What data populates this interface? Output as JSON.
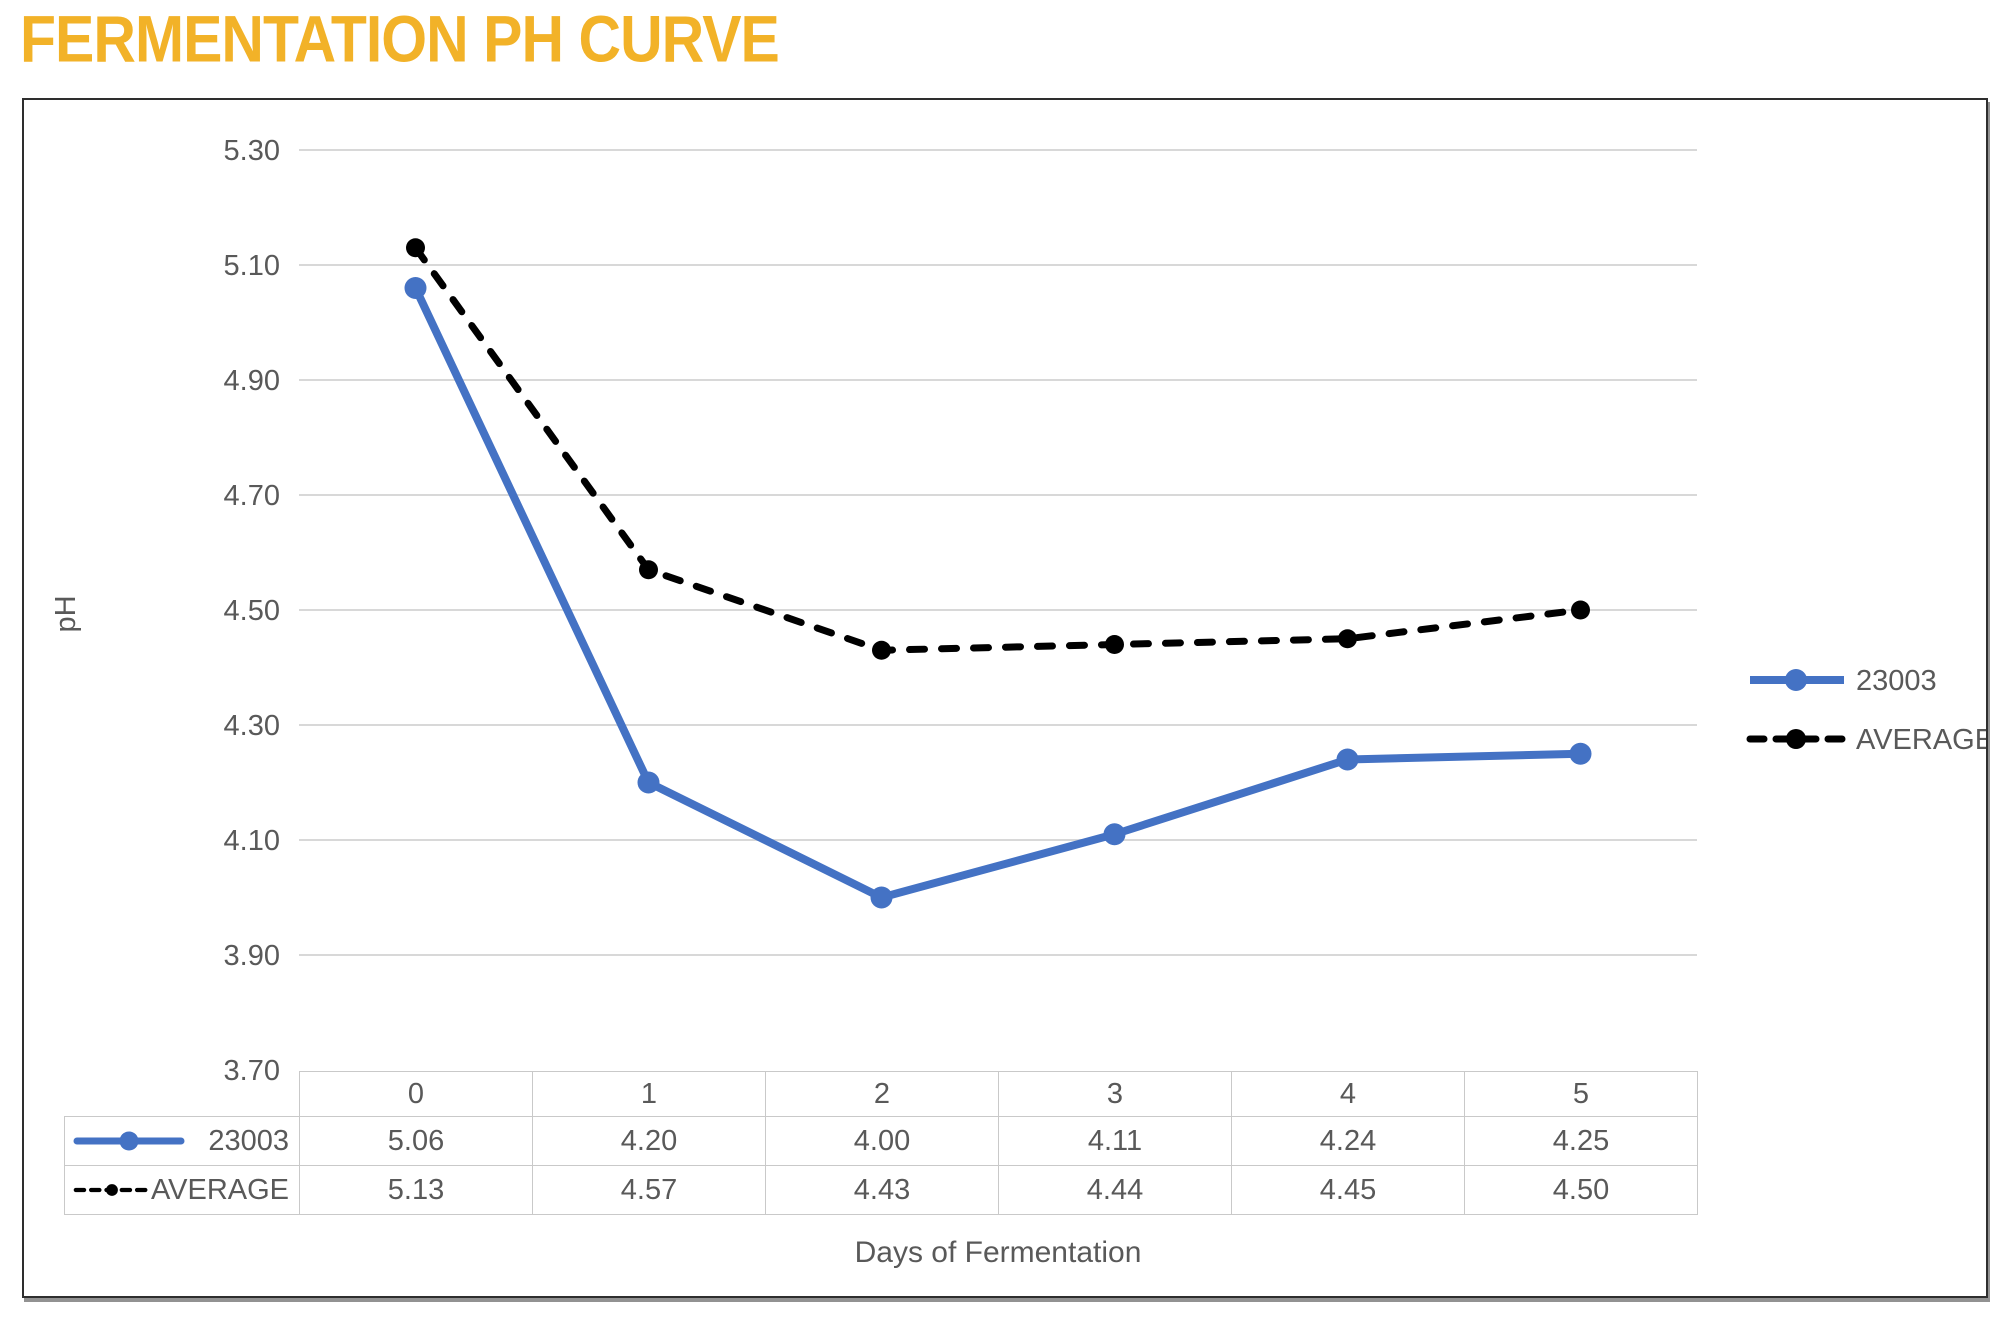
{
  "chart_data": {
    "type": "line",
    "title": "FERMENTATION PH CURVE",
    "xlabel": "Days of Fermentation",
    "ylabel": "pH",
    "categories": [
      "0",
      "1",
      "2",
      "3",
      "4",
      "5"
    ],
    "series": [
      {
        "name": "23003",
        "values": [
          5.06,
          4.2,
          4.0,
          4.11,
          4.24,
          4.25
        ],
        "color": "#4472C4",
        "line_style": "solid",
        "marker": "circle"
      },
      {
        "name": "AVERAGE",
        "values": [
          5.13,
          4.57,
          4.43,
          4.44,
          4.45,
          4.5
        ],
        "color": "#000000",
        "line_style": "dashed",
        "marker": "circle"
      }
    ],
    "yticks": [
      "5.30",
      "5.10",
      "4.90",
      "4.70",
      "4.50",
      "4.30",
      "4.10",
      "3.90",
      "3.70"
    ],
    "ylim": [
      3.7,
      5.3
    ],
    "ytick_step": 0.2,
    "value_decimals": 2,
    "grid": true,
    "legend_position": "right",
    "shows_data_table": true
  },
  "colors": {
    "title": "#F2B228",
    "series_23003": "#4472C4",
    "series_average": "#000000",
    "axis_text": "#595959",
    "gridline": "#D8D8D8",
    "table_border": "#C9C9C9",
    "chart_border": "#2E2E2E",
    "background": "#FFFFFF"
  }
}
